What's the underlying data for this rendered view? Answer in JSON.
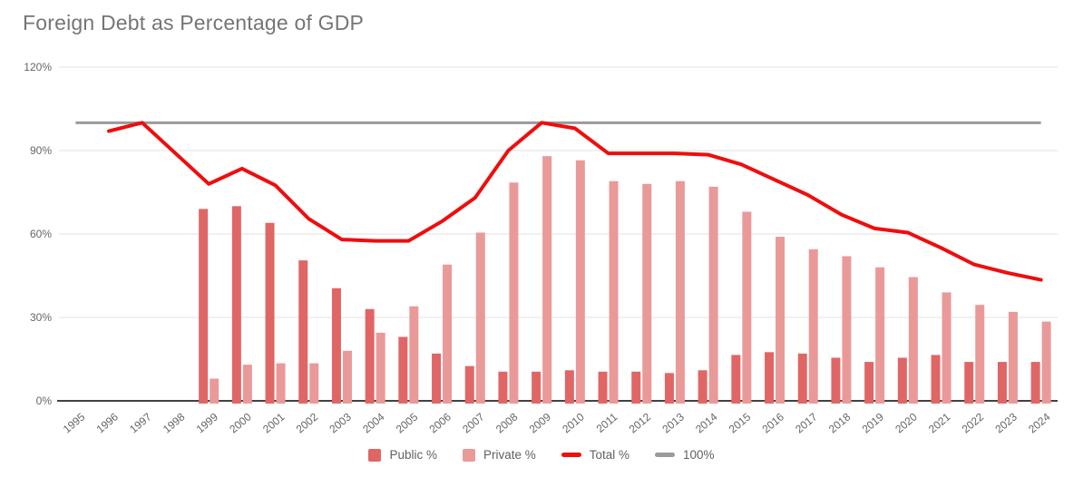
{
  "title": "Foreign Debt as Percentage of GDP",
  "legend": {
    "items": [
      {
        "label": "Public %",
        "color": "#e06666",
        "marker": "square"
      },
      {
        "label": "Private %",
        "color": "#ea9999",
        "marker": "square"
      },
      {
        "label": "Total %",
        "color": "#ef0d0d",
        "marker": "line"
      },
      {
        "label": "100%",
        "color": "#9a9a9a",
        "marker": "line"
      }
    ]
  },
  "colors": {
    "public_bar": "#e06666",
    "private_bar": "#ea9999",
    "total_line": "#ef0d0d",
    "hundred_line": "#9a9a9a",
    "gridline": "#e2e2e2",
    "axis_line": "#424242",
    "title_text": "#757575",
    "tick_text": "#666666",
    "legend_text": "#616161"
  },
  "chart_data": {
    "type": "bar",
    "combo": "grouped bars with overlaid lines",
    "title": "Foreign Debt as Percentage of GDP",
    "xlabel": "",
    "ylabel": "",
    "ylim": [
      0,
      120
    ],
    "y_ticks": [
      "0%",
      "30%",
      "60%",
      "90%",
      "120%"
    ],
    "y_tick_values": [
      0,
      30,
      60,
      90,
      120
    ],
    "grid": true,
    "legend_position": "bottom",
    "categories": [
      "1995",
      "1996",
      "1997",
      "1998",
      "1999",
      "2000",
      "2001",
      "2002",
      "2003",
      "2004",
      "2005",
      "2006",
      "2007",
      "2008",
      "2009",
      "2010",
      "2011",
      "2012",
      "2013",
      "2014",
      "2015",
      "2016",
      "2017",
      "2018",
      "2019",
      "2020",
      "2021",
      "2022",
      "2023",
      "2024"
    ],
    "series": [
      {
        "name": "Public %",
        "type": "bar",
        "color": "#e06666",
        "values": [
          null,
          null,
          null,
          null,
          69,
          70,
          64,
          50.5,
          40.5,
          33,
          23,
          17,
          12.5,
          10.5,
          10.5,
          11,
          10.5,
          10.5,
          10,
          11,
          16.5,
          17.5,
          17,
          15.5,
          14,
          15.5,
          16.5,
          14,
          14,
          14
        ]
      },
      {
        "name": "Private %",
        "type": "bar",
        "color": "#ea9999",
        "values": [
          null,
          null,
          null,
          null,
          8,
          13,
          13.5,
          13.5,
          18,
          24.5,
          34,
          49,
          60.5,
          78.5,
          88,
          86.5,
          79,
          78,
          79,
          77,
          68,
          59,
          54.5,
          52,
          48,
          44.5,
          39,
          34.5,
          32,
          28.5
        ]
      },
      {
        "name": "Total %",
        "type": "line",
        "color": "#ef0d0d",
        "values": [
          null,
          97,
          100,
          89,
          78,
          83.5,
          77.5,
          65.5,
          58,
          57.5,
          57.5,
          64.5,
          73,
          90,
          100,
          98,
          89,
          89,
          89,
          88.5,
          85,
          79.5,
          74,
          67,
          62,
          60.5,
          55,
          49,
          46,
          43.5
        ]
      },
      {
        "name": "100%",
        "type": "line",
        "color": "#9a9a9a",
        "values": [
          100,
          100,
          100,
          100,
          100,
          100,
          100,
          100,
          100,
          100,
          100,
          100,
          100,
          100,
          100,
          100,
          100,
          100,
          100,
          100,
          100,
          100,
          100,
          100,
          100,
          100,
          100,
          100,
          100,
          100
        ]
      }
    ]
  }
}
